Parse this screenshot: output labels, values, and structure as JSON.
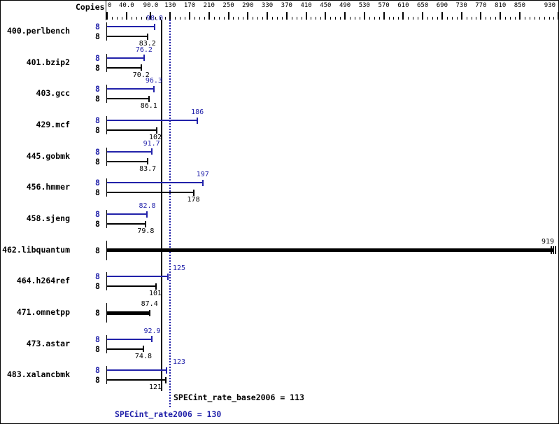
{
  "chart_data": {
    "type": "bar",
    "orientation": "horizontal",
    "copies_header": "Copies",
    "x_axis": {
      "range": [
        0,
        930
      ],
      "minor_tick_step": 10,
      "grid": false,
      "major_ticks": [
        {
          "value": 0,
          "label": "0"
        },
        {
          "value": 40,
          "label": "40.0"
        },
        {
          "value": 90,
          "label": "90.0"
        },
        {
          "value": 130,
          "label": "130"
        },
        {
          "value": 170,
          "label": "170"
        },
        {
          "value": 210,
          "label": "210"
        },
        {
          "value": 250,
          "label": "250"
        },
        {
          "value": 290,
          "label": "290"
        },
        {
          "value": 330,
          "label": "330"
        },
        {
          "value": 370,
          "label": "370"
        },
        {
          "value": 410,
          "label": "410"
        },
        {
          "value": 450,
          "label": "450"
        },
        {
          "value": 490,
          "label": "490"
        },
        {
          "value": 530,
          "label": "530"
        },
        {
          "value": 570,
          "label": "570"
        },
        {
          "value": 610,
          "label": "610"
        },
        {
          "value": 650,
          "label": "650"
        },
        {
          "value": 690,
          "label": "690"
        },
        {
          "value": 730,
          "label": "730"
        },
        {
          "value": 770,
          "label": "770"
        },
        {
          "value": 810,
          "label": "810"
        },
        {
          "value": 850,
          "label": "850"
        },
        {
          "value": 930,
          "label": "930"
        }
      ]
    },
    "series_colors": {
      "peak": "#2222aa",
      "base": "#000000"
    },
    "benchmarks": [
      {
        "name": "400.perlbench",
        "copies": 8,
        "peak": 98.0,
        "peak_label": "98.0",
        "base": 83.2,
        "base_label": "83.2"
      },
      {
        "name": "401.bzip2",
        "copies": 8,
        "peak": 76.2,
        "peak_label": "76.2",
        "base": 70.2,
        "base_label": "70.2"
      },
      {
        "name": "403.gcc",
        "copies": 8,
        "peak": 96.3,
        "peak_label": "96.3",
        "base": 86.1,
        "base_label": "86.1"
      },
      {
        "name": "429.mcf",
        "copies": 8,
        "peak": 186,
        "peak_label": "186",
        "base": 102,
        "base_label": "102"
      },
      {
        "name": "445.gobmk",
        "copies": 8,
        "peak": 91.7,
        "peak_label": "91.7",
        "base": 83.7,
        "base_label": "83.7"
      },
      {
        "name": "456.hmmer",
        "copies": 8,
        "peak": 197,
        "peak_label": "197",
        "base": 178,
        "base_label": "178"
      },
      {
        "name": "458.sjeng",
        "copies": 8,
        "peak": 82.8,
        "peak_label": "82.8",
        "base": 79.8,
        "base_label": "79.8"
      },
      {
        "name": "462.libquantum",
        "copies": 8,
        "base": 919,
        "base_label": "919",
        "single_bar": true,
        "overflow": true
      },
      {
        "name": "464.h264ref",
        "copies": 8,
        "peak": 125,
        "peak_label": "125",
        "base": 101,
        "base_label": "101"
      },
      {
        "name": "471.omnetpp",
        "copies": 8,
        "base": 87.4,
        "base_label": "87.4",
        "single_bar": true
      },
      {
        "name": "473.astar",
        "copies": 8,
        "peak": 92.9,
        "peak_label": "92.9",
        "base": 74.8,
        "base_label": "74.8"
      },
      {
        "name": "483.xalancbmk",
        "copies": 8,
        "peak": 123,
        "peak_label": "123",
        "base": 121,
        "base_label": "121"
      }
    ],
    "summary": {
      "base_text": "SPECint_rate_base2006 = 113",
      "base_value": 113,
      "peak_text": "SPECint_rate2006 = 130",
      "peak_value": 130
    }
  }
}
